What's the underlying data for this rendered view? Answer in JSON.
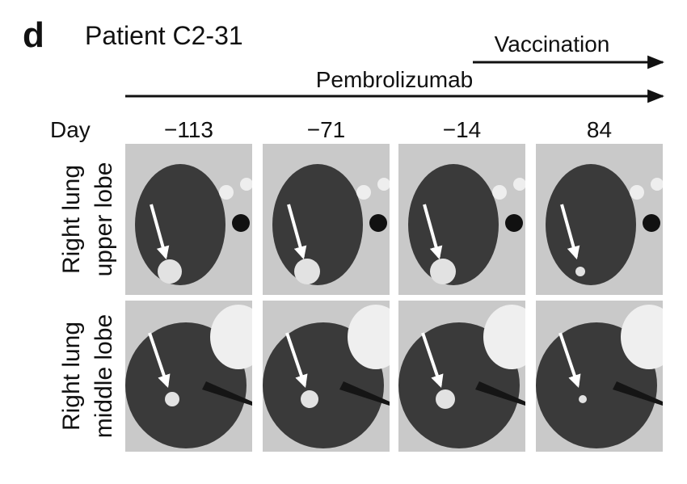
{
  "panel_label": "d",
  "title": "Patient C2-31",
  "treatments": [
    {
      "label": "Vaccination"
    },
    {
      "label": "Pembrolizumab"
    }
  ],
  "day_label": "Day",
  "days": [
    "−113",
    "−71",
    "−14",
    "84"
  ],
  "rows": [
    {
      "lines": [
        "Right lung",
        "upper lobe"
      ]
    },
    {
      "lines": [
        "Right lung",
        "middle lobe"
      ]
    }
  ]
}
